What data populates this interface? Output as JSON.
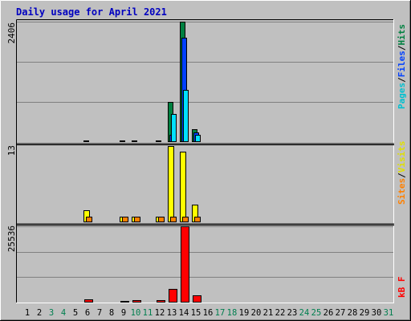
{
  "chart_data": [
    {
      "type": "bar",
      "title": "Daily usage for April 2021",
      "categories": [
        "1",
        "2",
        "3",
        "4",
        "5",
        "6",
        "7",
        "8",
        "9",
        "10",
        "11",
        "12",
        "13",
        "14",
        "15",
        "16",
        "17",
        "18",
        "19",
        "20",
        "21",
        "22",
        "23",
        "24",
        "25",
        "26",
        "27",
        "28",
        "29",
        "30",
        "31"
      ],
      "weekend_days": [
        "3",
        "4",
        "10",
        "11",
        "17",
        "18",
        "24",
        "25",
        "31"
      ],
      "ymax_label": "2406",
      "ylim": [
        0,
        2406
      ],
      "legend": [
        "Pages",
        "Files",
        "Hits"
      ],
      "series": [
        {
          "name": "Hits",
          "color": "#008040",
          "values": [
            0,
            0,
            0,
            0,
            0,
            2,
            0,
            0,
            2,
            2,
            0,
            2,
            800,
            2406,
            260,
            0,
            0,
            0,
            0,
            0,
            0,
            0,
            0,
            0,
            0,
            0,
            0,
            0,
            0,
            0,
            0
          ]
        },
        {
          "name": "Files",
          "color": "#0040ff",
          "values": [
            0,
            0,
            0,
            0,
            0,
            0,
            0,
            0,
            0,
            0,
            0,
            0,
            150,
            2080,
            200,
            0,
            0,
            0,
            0,
            0,
            0,
            0,
            0,
            0,
            0,
            0,
            0,
            0,
            0,
            0,
            0
          ]
        },
        {
          "name": "Pages",
          "color": "#00e0ff",
          "values": [
            0,
            0,
            0,
            0,
            0,
            0,
            0,
            0,
            0,
            0,
            0,
            0,
            560,
            1050,
            150,
            0,
            0,
            0,
            0,
            0,
            0,
            0,
            0,
            0,
            0,
            0,
            0,
            0,
            0,
            0,
            0
          ]
        }
      ],
      "colors": {
        "day_label": "#000000",
        "weekend_label": "#007f4f",
        "separator": "#000000"
      }
    },
    {
      "type": "bar",
      "ymax_label": "13",
      "ylim": [
        0,
        13
      ],
      "legend": [
        "Sites",
        "Visits"
      ],
      "series": [
        {
          "name": "Visits",
          "color": "#ffff00",
          "values": [
            0,
            0,
            0,
            0,
            0,
            2,
            0,
            0,
            1,
            1,
            0,
            1,
            13,
            12,
            3,
            0,
            0,
            0,
            0,
            0,
            0,
            0,
            0,
            0,
            0,
            0,
            0,
            0,
            0,
            0,
            0
          ]
        },
        {
          "name": "Sites",
          "color": "#ff8000",
          "values": [
            0,
            0,
            0,
            0,
            0,
            1,
            0,
            0,
            1,
            1,
            0,
            1,
            1,
            1,
            1,
            0,
            0,
            0,
            0,
            0,
            0,
            0,
            0,
            0,
            0,
            0,
            0,
            0,
            0,
            0,
            0
          ]
        }
      ]
    },
    {
      "type": "bar",
      "ymax_label": "25536",
      "ylim": [
        0,
        25536
      ],
      "legend": [
        "kB F"
      ],
      "series": [
        {
          "name": "kB F",
          "color": "#ff0000",
          "values": [
            0,
            0,
            0,
            0,
            0,
            1200,
            0,
            0,
            300,
            800,
            0,
            700,
            4500,
            25536,
            2500,
            0,
            0,
            0,
            0,
            0,
            0,
            0,
            0,
            0,
            0,
            0,
            0,
            0,
            0,
            0,
            0
          ]
        }
      ]
    }
  ],
  "style": {
    "frame_bg": "#c0c0c0",
    "plot_bg": "#c0c0c0",
    "gridline": "#808080",
    "title_color": "#0000c0",
    "legend_colors": {
      "Hits": "#008040",
      "Files": "#0040ff",
      "Pages": "#00c0d0",
      "Visits": "#e0e000",
      "Sites": "#ff8000",
      "kB F": "#ff0000",
      "slash": "#000000"
    }
  }
}
